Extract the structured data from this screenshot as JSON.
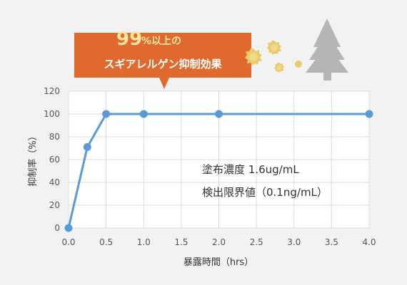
{
  "callout": {
    "number": "99",
    "percent_suffix": "%以上の",
    "line2": "スギアレルゲン抑制効果",
    "color": "#e06a2e"
  },
  "icons": [
    "pollen-icon",
    "pollen-icon",
    "pollen-icon",
    "pollen-icon",
    "cedar-tree-icon"
  ],
  "chart_data": {
    "type": "line",
    "title": "",
    "xlabel": "暴露時間（hrs）",
    "ylabel": "抑制率（%）",
    "xlim": [
      0,
      4.0
    ],
    "ylim": [
      0,
      120
    ],
    "xticks": [
      "0.0",
      "0.5",
      "1.0",
      "1.5",
      "2.0",
      "2.5",
      "3.0",
      "3.5",
      "4.0"
    ],
    "yticks": [
      "0",
      "20",
      "40",
      "60",
      "80",
      "100",
      "120"
    ],
    "grid": true,
    "series": [
      {
        "x": [
          0,
          0.25,
          0.5,
          1.0,
          2.0,
          4.0
        ],
        "y": [
          0,
          71,
          100,
          100,
          100,
          100
        ],
        "color": "#5b9bd5"
      }
    ],
    "annotations": [
      "塗布濃度 1.6ug/mL",
      "検出限界値（0.1ng/mL）"
    ]
  }
}
